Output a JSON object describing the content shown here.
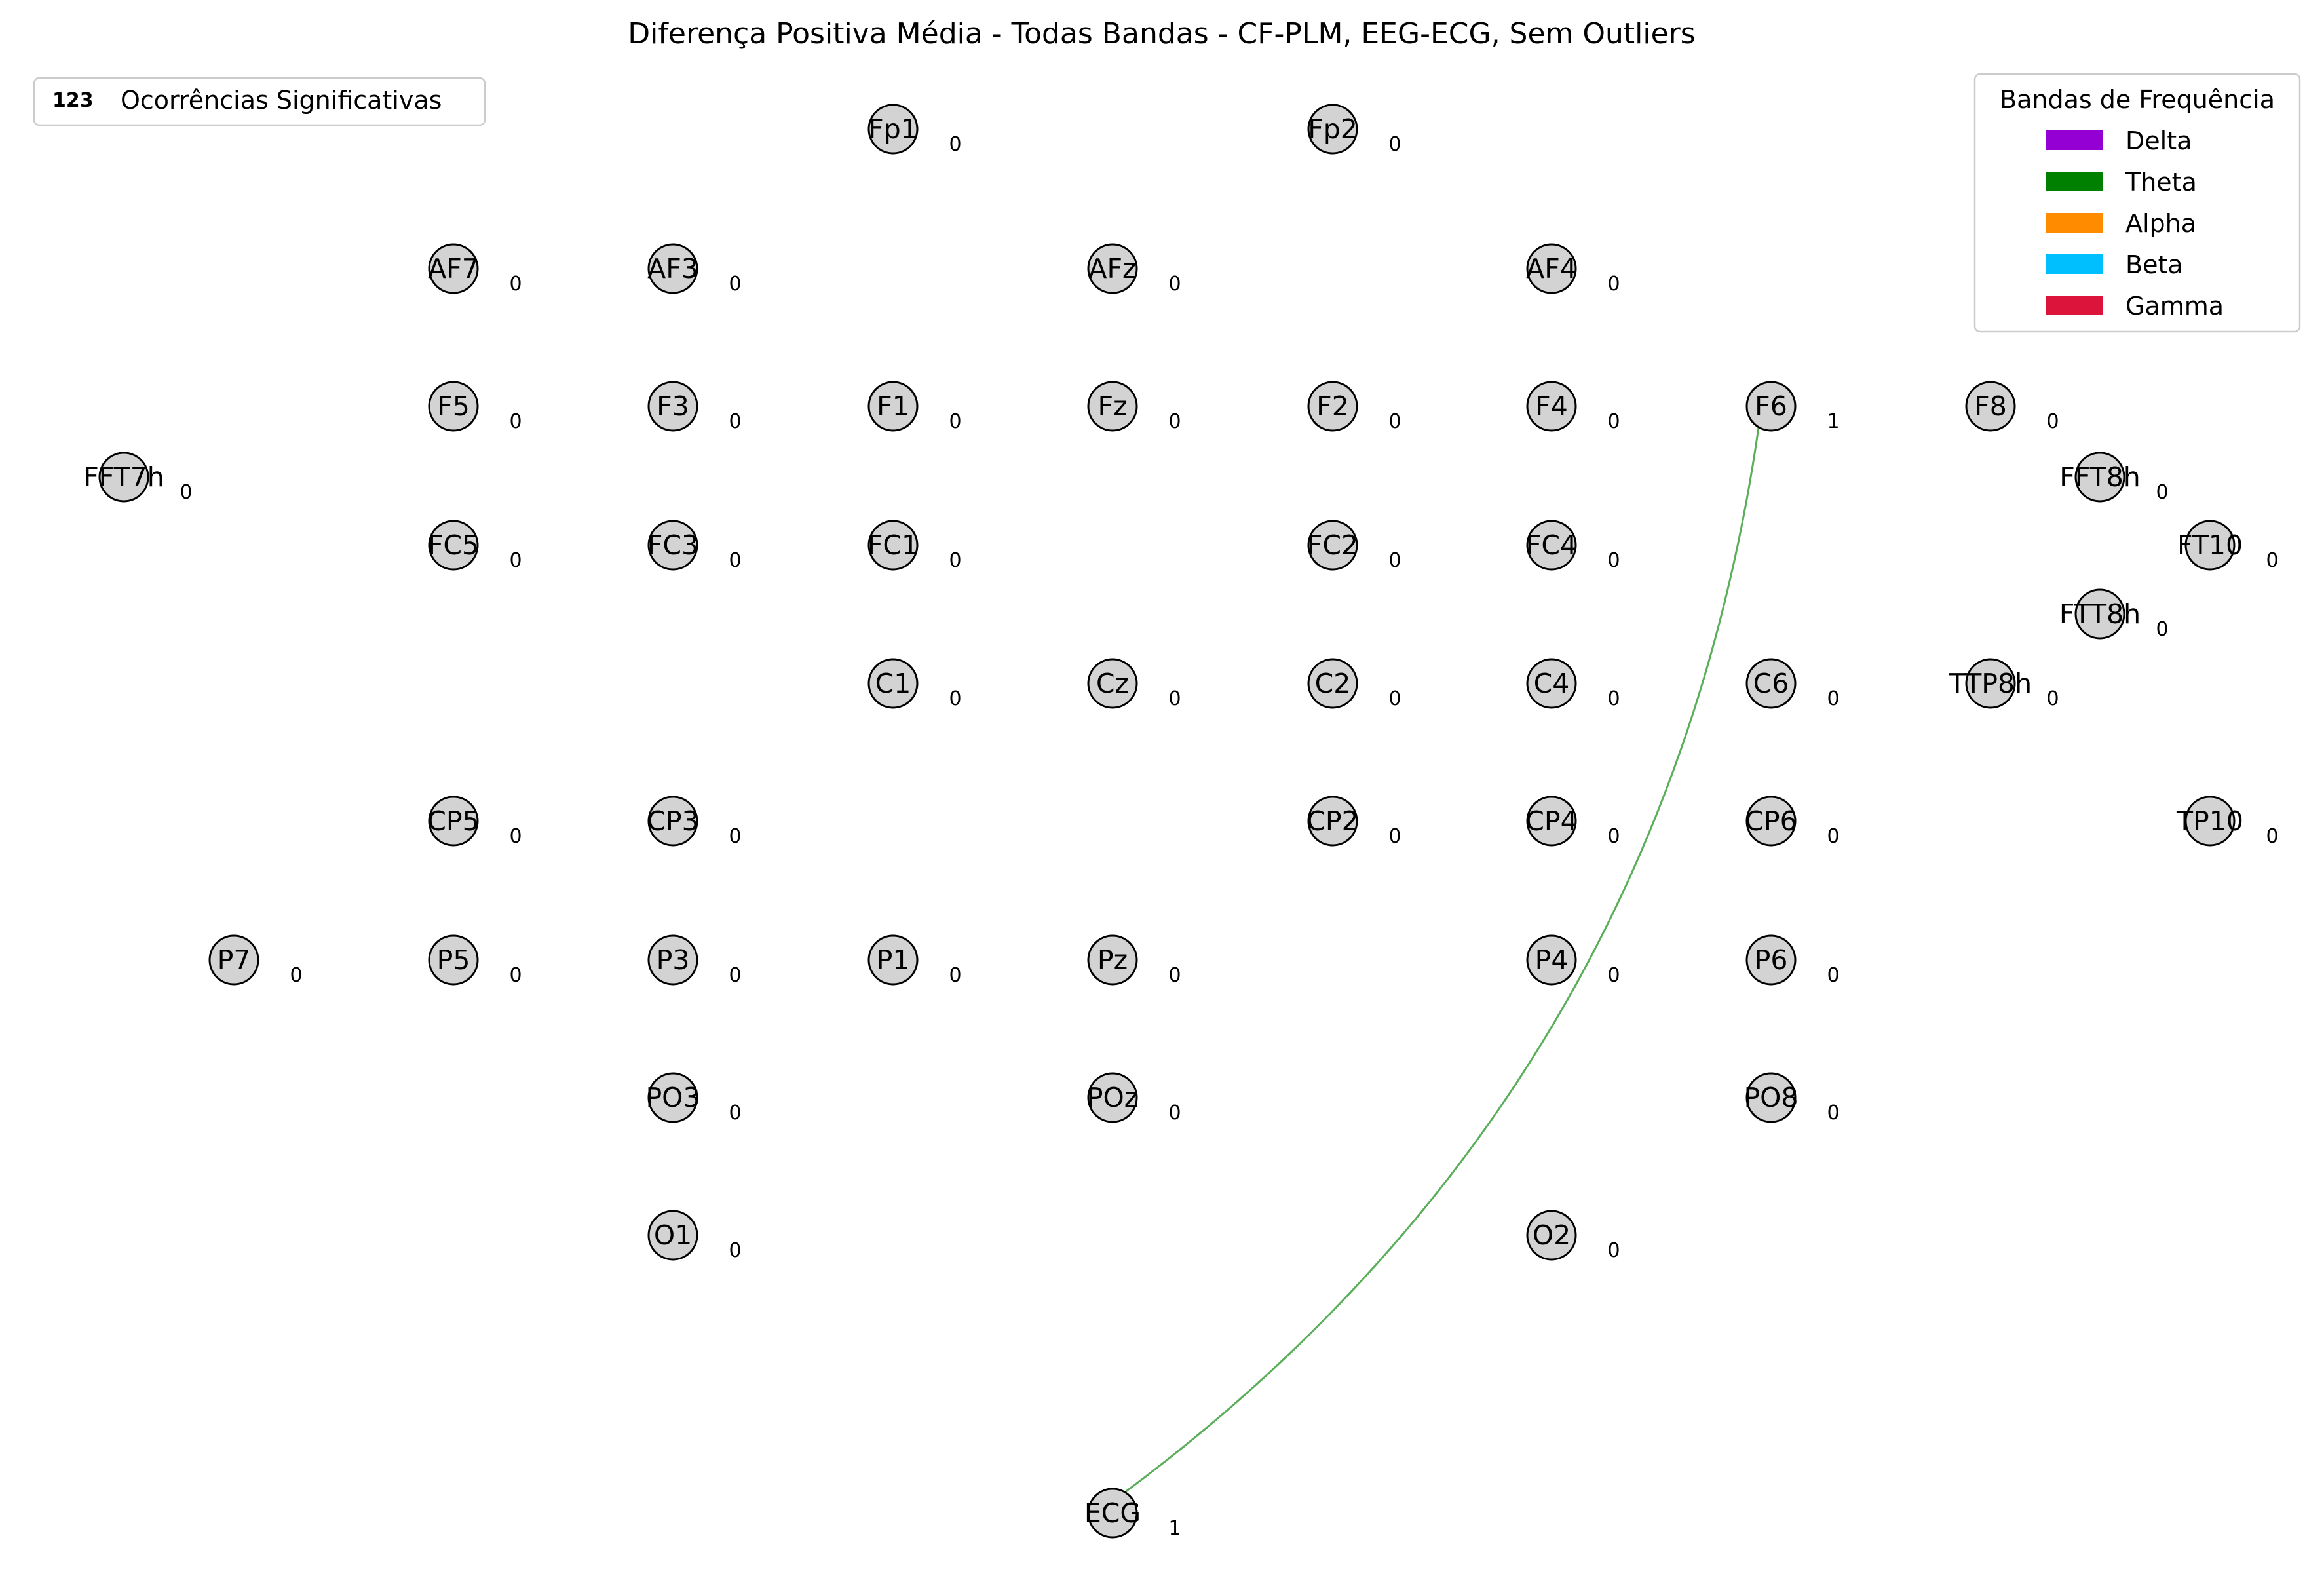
{
  "title": "Diferença Positiva Média - Todas Bandas - CF-PLM, EEG-ECG, Sem Outliers",
  "count_legend": {
    "marker": "123",
    "label": "Ocorrências Significativas"
  },
  "band_legend": {
    "title": "Bandas de Frequência",
    "items": [
      {
        "label": "Delta",
        "color": "#9400D3"
      },
      {
        "label": "Theta",
        "color": "#008000"
      },
      {
        "label": "Alpha",
        "color": "#FF8C00"
      },
      {
        "label": "Beta",
        "color": "#00BFFF"
      },
      {
        "label": "Gamma",
        "color": "#DC143C"
      }
    ]
  },
  "node_style": {
    "fill": "#D3D3D3",
    "stroke": "#000000"
  },
  "nodes": [
    {
      "label": "Fp1",
      "count": "0"
    },
    {
      "label": "Fp2",
      "count": "0"
    },
    {
      "label": "AF7",
      "count": "0"
    },
    {
      "label": "AF3",
      "count": "0"
    },
    {
      "label": "AFz",
      "count": "0"
    },
    {
      "label": "AF4",
      "count": "0"
    },
    {
      "label": "F5",
      "count": "0"
    },
    {
      "label": "F3",
      "count": "0"
    },
    {
      "label": "F1",
      "count": "0"
    },
    {
      "label": "Fz",
      "count": "0"
    },
    {
      "label": "F2",
      "count": "0"
    },
    {
      "label": "F4",
      "count": "0"
    },
    {
      "label": "F6",
      "count": "1"
    },
    {
      "label": "F8",
      "count": "0"
    },
    {
      "label": "FFT7h",
      "count": "0"
    },
    {
      "label": "FFT8h",
      "count": "0"
    },
    {
      "label": "FC5",
      "count": "0"
    },
    {
      "label": "FC3",
      "count": "0"
    },
    {
      "label": "FC1",
      "count": "0"
    },
    {
      "label": "FC2",
      "count": "0"
    },
    {
      "label": "FC4",
      "count": "0"
    },
    {
      "label": "FT10",
      "count": "0"
    },
    {
      "label": "FTT8h",
      "count": "0"
    },
    {
      "label": "C1",
      "count": "0"
    },
    {
      "label": "Cz",
      "count": "0"
    },
    {
      "label": "C2",
      "count": "0"
    },
    {
      "label": "C4",
      "count": "0"
    },
    {
      "label": "C6",
      "count": "0"
    },
    {
      "label": "TTP8h",
      "count": "0"
    },
    {
      "label": "CP5",
      "count": "0"
    },
    {
      "label": "CP3",
      "count": "0"
    },
    {
      "label": "CP2",
      "count": "0"
    },
    {
      "label": "CP4",
      "count": "0"
    },
    {
      "label": "CP6",
      "count": "0"
    },
    {
      "label": "TP10",
      "count": "0"
    },
    {
      "label": "P7",
      "count": "0"
    },
    {
      "label": "P5",
      "count": "0"
    },
    {
      "label": "P3",
      "count": "0"
    },
    {
      "label": "P1",
      "count": "0"
    },
    {
      "label": "Pz",
      "count": "0"
    },
    {
      "label": "P4",
      "count": "0"
    },
    {
      "label": "P6",
      "count": "0"
    },
    {
      "label": "PO3",
      "count": "0"
    },
    {
      "label": "POz",
      "count": "0"
    },
    {
      "label": "PO8",
      "count": "0"
    },
    {
      "label": "O1",
      "count": "0"
    },
    {
      "label": "O2",
      "count": "0"
    },
    {
      "label": "ECG",
      "count": "1"
    }
  ],
  "edges": [
    {
      "from": "ECG",
      "to": "F6",
      "band": "Theta",
      "color": "#5AAE5A"
    }
  ]
}
